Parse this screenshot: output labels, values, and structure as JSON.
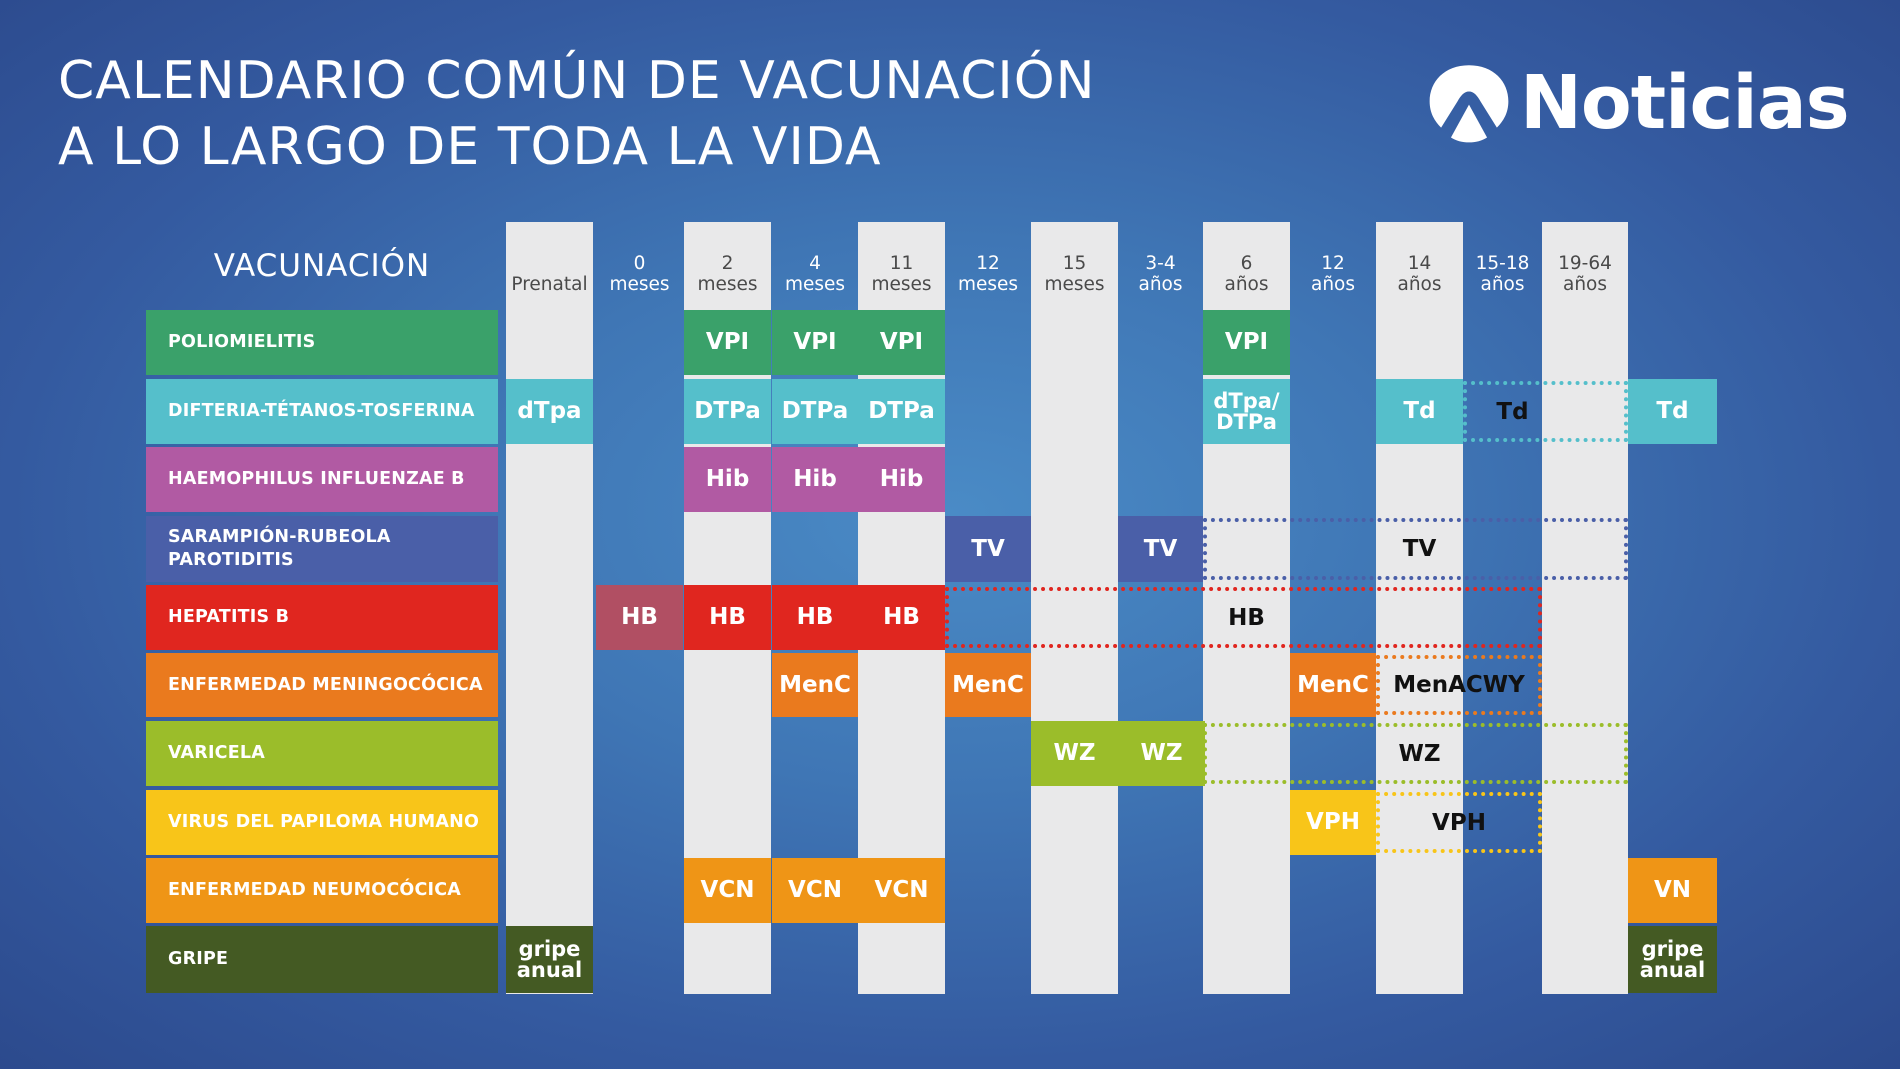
{
  "title": {
    "line1": "CALENDARIO COMÚN DE VACUNACIÓN",
    "line2": "A LO LARGO DE TODA LA VIDA"
  },
  "logo": {
    "text": "Noticias",
    "icon": "antena3-logo-icon"
  },
  "header": {
    "vacunacion": "VACUNACIÓN"
  },
  "columns": [
    {
      "id": "prenatal",
      "l1": "Prenatal",
      "l2": ""
    },
    {
      "id": "0m",
      "l1": "0",
      "l2": "meses"
    },
    {
      "id": "2m",
      "l1": "2",
      "l2": "meses"
    },
    {
      "id": "4m",
      "l1": "4",
      "l2": "meses"
    },
    {
      "id": "11m",
      "l1": "11",
      "l2": "meses"
    },
    {
      "id": "12m",
      "l1": "12",
      "l2": "meses"
    },
    {
      "id": "15m",
      "l1": "15",
      "l2": "meses"
    },
    {
      "id": "3-4a",
      "l1": "3-4",
      "l2": "años"
    },
    {
      "id": "6a",
      "l1": "6",
      "l2": "años"
    },
    {
      "id": "12a",
      "l1": "12",
      "l2": "años"
    },
    {
      "id": "14a",
      "l1": "14",
      "l2": "años"
    },
    {
      "id": "15-18a",
      "l1": "15-18",
      "l2": "años"
    },
    {
      "id": "19-64a",
      "l1": "19-64",
      "l2": "años"
    }
  ],
  "rows": [
    {
      "id": "polio",
      "label": "POLIOMIELITIS",
      "color": "#3aa16a"
    },
    {
      "id": "dtp",
      "label": "DIFTERIA-TÉTANOS-TOSFERINA",
      "color": "#55bfcb"
    },
    {
      "id": "hib",
      "label": "HAEMOPHILUS INFLUENZAE B",
      "color": "#b15aa3"
    },
    {
      "id": "trivirica",
      "label": "SARAMPIÓN-RUBEOLA PAROTIDITIS",
      "color": "#4a5fa8"
    },
    {
      "id": "hepb",
      "label": "HEPATITIS B",
      "color": "#e0261f"
    },
    {
      "id": "menin",
      "label": "ENFERMEDAD MENINGOCÓCICA",
      "color": "#ea7a1e"
    },
    {
      "id": "varicela",
      "label": "VARICELA",
      "color": "#9bbd2a"
    },
    {
      "id": "vph",
      "label": "VIRUS DEL PAPILOMA HUMANO",
      "color": "#f8c519"
    },
    {
      "id": "neumo",
      "label": "ENFERMEDAD NEUMOCÓCICA",
      "color": "#ef9516"
    },
    {
      "id": "gripe",
      "label": "GRIPE",
      "color": "#445a23"
    }
  ],
  "cells": [
    {
      "row": "polio",
      "col": "2m",
      "text": "VPI"
    },
    {
      "row": "polio",
      "col": "4m",
      "text": "VPI"
    },
    {
      "row": "polio",
      "col": "11m",
      "text": "VPI"
    },
    {
      "row": "polio",
      "col": "6a",
      "text": "VPI"
    },
    {
      "row": "dtp",
      "col": "prenatal",
      "text": "dTpa"
    },
    {
      "row": "dtp",
      "col": "2m",
      "text": "DTPa"
    },
    {
      "row": "dtp",
      "col": "4m",
      "text": "DTPa"
    },
    {
      "row": "dtp",
      "col": "11m",
      "text": "DTPa"
    },
    {
      "row": "dtp",
      "col": "6a",
      "text": "dTpa/ DTPa"
    },
    {
      "row": "dtp",
      "col": "14a",
      "text": "Td"
    },
    {
      "row": "dtp",
      "col": "after",
      "text": "Td"
    },
    {
      "row": "hib",
      "col": "2m",
      "text": "Hib"
    },
    {
      "row": "hib",
      "col": "4m",
      "text": "Hib"
    },
    {
      "row": "hib",
      "col": "11m",
      "text": "Hib"
    },
    {
      "row": "trivirica",
      "col": "12m",
      "text": "TV"
    },
    {
      "row": "trivirica",
      "col": "3-4a",
      "text": "TV"
    },
    {
      "row": "hepb",
      "col": "0m",
      "text": "HB",
      "color": "#b14f63"
    },
    {
      "row": "hepb",
      "col": "2m",
      "text": "HB"
    },
    {
      "row": "hepb",
      "col": "4m",
      "text": "HB"
    },
    {
      "row": "hepb",
      "col": "11m",
      "text": "HB"
    },
    {
      "row": "menin",
      "col": "4m",
      "text": "MenC"
    },
    {
      "row": "menin",
      "col": "12m",
      "text": "MenC"
    },
    {
      "row": "menin",
      "col": "12a",
      "text": "MenC"
    },
    {
      "row": "varicela",
      "col": "15m",
      "text": "WZ"
    },
    {
      "row": "varicela",
      "col": "3-4a",
      "text": "WZ"
    },
    {
      "row": "vph",
      "col": "12a",
      "text": "VPH"
    },
    {
      "row": "neumo",
      "col": "2m",
      "text": "VCN"
    },
    {
      "row": "neumo",
      "col": "4m",
      "text": "VCN"
    },
    {
      "row": "neumo",
      "col": "11m",
      "text": "VCN"
    },
    {
      "row": "neumo",
      "col": "after",
      "text": "VN"
    },
    {
      "row": "gripe",
      "col": "prenatal",
      "text": "gripe anual"
    },
    {
      "row": "gripe",
      "col": "after",
      "text": "gripe anual"
    }
  ],
  "ranges": [
    {
      "row": "dtp",
      "from": "15-18a",
      "to": "19-64a",
      "text": "Td",
      "color": "#55bfcb"
    },
    {
      "row": "trivirica",
      "from": "6a",
      "to": "19-64a",
      "text": "TV",
      "color": "#4a5fa8"
    },
    {
      "row": "hepb",
      "from": "12m",
      "to": "15-18a",
      "text": "HB",
      "color": "#e0261f"
    },
    {
      "row": "menin",
      "from": "14a",
      "to": "15-18a",
      "text": "MenACWY",
      "color": "#ea7a1e"
    },
    {
      "row": "varicela",
      "from": "6a",
      "to": "19-64a",
      "text": "WZ",
      "color": "#9bbd2a"
    },
    {
      "row": "vph",
      "from": "14a",
      "to": "15-18a",
      "text": "VPH",
      "color": "#f8c519"
    }
  ]
}
